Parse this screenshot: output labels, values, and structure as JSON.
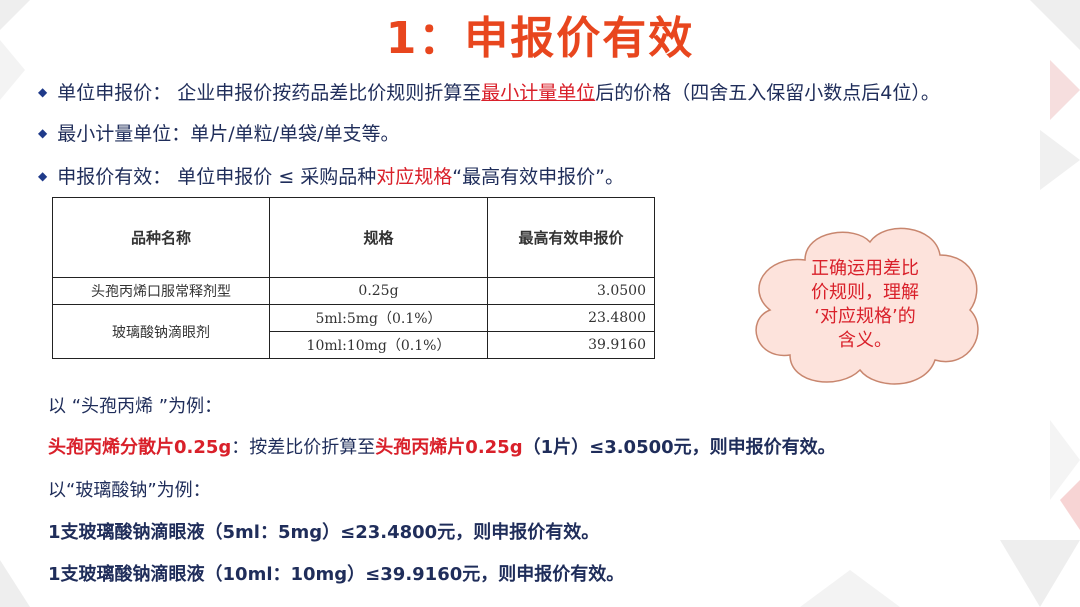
{
  "title": "1：申报价有效",
  "bullets": [
    {
      "a": "单位申报价： 企业申报价按药品差比价规则折算至",
      "b": "最小计量单位",
      "c": "后的价格（四舍五入保留小数点后4位）。"
    },
    {
      "a": "最小计量单位：单片/单粒/单袋/单支等。"
    },
    {
      "a": "申报价有效： 单位申报价 ≤ 采购品种",
      "b": "对应规格",
      "c": "“最高有效申报价”。"
    }
  ],
  "table": {
    "headers": [
      "品种名称",
      "规格",
      "最高有效申报价"
    ],
    "rows": [
      {
        "name": "头孢丙烯口服常释剂型",
        "spec": "0.25g",
        "price": "3.0500"
      },
      {
        "name": "玻璃酸钠滴眼剂",
        "spec": "5ml:5mg（0.1%）",
        "price": "23.4800"
      },
      {
        "spec": "10ml:10mg（0.1%）",
        "price": "39.9160"
      }
    ]
  },
  "callout": [
    "正确运用差比",
    "价规则，理解",
    "‘对应规格’的",
    "含义。"
  ],
  "examples": {
    "l1": "以 “头孢丙烯 ”为例：",
    "l2a": "头孢丙烯分散片0.25g",
    "l2b": "：按差比价折算至",
    "l2c": "头孢丙烯片0.25g",
    "l2d": "（1片）≤3.0500元，则申报价有效。",
    "l3": "以“玻璃酸钠”为例：",
    "l4": "1支玻璃酸钠滴眼液（5ml：5mg）≤23.4800元，则申报价有效。",
    "l5": "1支玻璃酸钠滴眼液（10ml：10mg）≤39.9160元，则申报价有效。"
  },
  "colors": {
    "title": "#e8461e",
    "highlight": "#d9202a",
    "text": "#1f2d5a",
    "cloud_fill": "#fde3dc"
  }
}
